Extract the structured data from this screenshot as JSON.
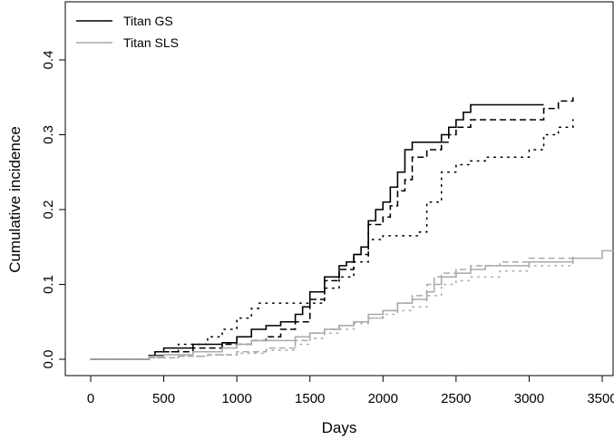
{
  "chart_data": {
    "type": "line",
    "xlabel": "Days",
    "ylabel": "Cumulative incidence",
    "xlim": [
      0,
      3600
    ],
    "ylim": [
      0,
      0.45
    ],
    "x_ticks": [
      0,
      500,
      1000,
      1500,
      2000,
      2500,
      3000,
      3500
    ],
    "x_tick_labels": [
      "0",
      "500",
      "1000",
      "1500",
      "2000",
      "2500",
      "3000",
      "3500"
    ],
    "y_ticks": [
      0.0,
      0.1,
      0.2,
      0.3,
      0.4
    ],
    "y_tick_labels": [
      "0.0",
      "0.1",
      "0.2",
      "0.3",
      "0.4"
    ],
    "grid": false,
    "legend": {
      "position": "top-left",
      "entries": [
        {
          "label": "Titan GS",
          "color": "#000000"
        },
        {
          "label": "Titan SLS",
          "color": "#aaaaaa"
        }
      ]
    },
    "series": [
      {
        "name": "Titan GS",
        "color": "#000000",
        "style": "solid",
        "x": [
          0,
          380,
          400,
          440,
          500,
          700,
          900,
          1000,
          1100,
          1200,
          1300,
          1400,
          1450,
          1500,
          1600,
          1700,
          1750,
          1800,
          1850,
          1900,
          1950,
          2000,
          2050,
          2100,
          2150,
          2200,
          2300,
          2400,
          2450,
          2500,
          2550,
          2600,
          3000,
          3100
        ],
        "y": [
          0,
          0,
          0.005,
          0.01,
          0.015,
          0.02,
          0.022,
          0.03,
          0.04,
          0.045,
          0.05,
          0.06,
          0.07,
          0.09,
          0.11,
          0.125,
          0.13,
          0.14,
          0.15,
          0.185,
          0.2,
          0.21,
          0.23,
          0.25,
          0.28,
          0.29,
          0.29,
          0.3,
          0.31,
          0.32,
          0.33,
          0.34,
          0.34,
          0.34
        ]
      },
      {
        "name": "",
        "color": "#000000",
        "style": "dashed",
        "x": [
          0,
          380,
          400,
          500,
          700,
          900,
          1000,
          1100,
          1200,
          1300,
          1400,
          1500,
          1600,
          1700,
          1800,
          1900,
          2000,
          2050,
          2100,
          2150,
          2200,
          2300,
          2400,
          2450,
          2500,
          2600,
          3000,
          3100,
          3200,
          3300
        ],
        "y": [
          0,
          0,
          0.005,
          0.01,
          0.015,
          0.02,
          0.02,
          0.025,
          0.03,
          0.04,
          0.05,
          0.08,
          0.105,
          0.12,
          0.14,
          0.18,
          0.19,
          0.205,
          0.225,
          0.24,
          0.27,
          0.28,
          0.29,
          0.3,
          0.31,
          0.32,
          0.32,
          0.335,
          0.345,
          0.35
        ]
      },
      {
        "name": "",
        "color": "#000000",
        "style": "dotted",
        "x": [
          0,
          380,
          400,
          500,
          600,
          800,
          900,
          1000,
          1100,
          1150,
          1500,
          1600,
          1700,
          1800,
          1900,
          2000,
          2100,
          2200,
          2250,
          2300,
          2400,
          2500,
          2600,
          2700,
          3000,
          3100,
          3200,
          3300
        ],
        "y": [
          0,
          0,
          0.005,
          0.01,
          0.02,
          0.03,
          0.04,
          0.055,
          0.068,
          0.075,
          0.075,
          0.095,
          0.11,
          0.13,
          0.16,
          0.165,
          0.165,
          0.165,
          0.17,
          0.21,
          0.25,
          0.26,
          0.265,
          0.27,
          0.28,
          0.3,
          0.31,
          0.32
        ]
      },
      {
        "name": "Titan SLS",
        "color": "#aaaaaa",
        "style": "solid",
        "x": [
          0,
          380,
          400,
          500,
          700,
          900,
          1000,
          1100,
          1200,
          1400,
          1500,
          1600,
          1700,
          1800,
          1900,
          2000,
          2100,
          2200,
          2300,
          2350,
          2400,
          2500,
          2600,
          2700,
          3000,
          3300,
          3500,
          3600
        ],
        "y": [
          0,
          0,
          0.004,
          0.006,
          0.01,
          0.015,
          0.02,
          0.025,
          0.025,
          0.03,
          0.035,
          0.04,
          0.045,
          0.05,
          0.06,
          0.065,
          0.075,
          0.08,
          0.09,
          0.1,
          0.11,
          0.115,
          0.12,
          0.125,
          0.13,
          0.135,
          0.145,
          0.145
        ]
      },
      {
        "name": "",
        "color": "#aaaaaa",
        "style": "dashed",
        "x": [
          0,
          380,
          400,
          600,
          800,
          1000,
          1200,
          1400,
          1500,
          1600,
          1700,
          1800,
          1900,
          2000,
          2100,
          2200,
          2300,
          2350,
          2400,
          2500,
          2600,
          2800,
          3000,
          3300
        ],
        "y": [
          0,
          0,
          0.002,
          0.004,
          0.006,
          0.01,
          0.015,
          0.025,
          0.035,
          0.04,
          0.045,
          0.05,
          0.055,
          0.065,
          0.075,
          0.085,
          0.1,
          0.11,
          0.115,
          0.12,
          0.125,
          0.13,
          0.135,
          0.14
        ]
      },
      {
        "name": "",
        "color": "#aaaaaa",
        "style": "dotted",
        "x": [
          0,
          380,
          400,
          600,
          800,
          1000,
          1200,
          1400,
          1500,
          1600,
          1700,
          1800,
          1900,
          2000,
          2100,
          2200,
          2300,
          2400,
          2500,
          2600,
          2800,
          3000,
          3300
        ],
        "y": [
          0,
          0,
          0.002,
          0.004,
          0.006,
          0.008,
          0.012,
          0.02,
          0.028,
          0.035,
          0.04,
          0.048,
          0.055,
          0.06,
          0.065,
          0.07,
          0.085,
          0.1,
          0.105,
          0.11,
          0.118,
          0.125,
          0.135
        ]
      }
    ]
  }
}
